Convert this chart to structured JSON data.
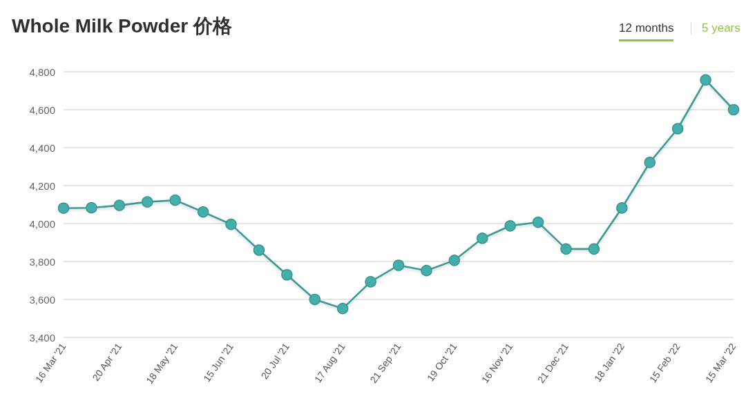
{
  "chart_data": {
    "type": "line",
    "title": "Whole Milk Powder 价格",
    "annotations": [
      "12 months",
      "5 years"
    ],
    "categories": [
      "16 Mar '21",
      null,
      "20 Apr '21",
      null,
      "18 May '21",
      null,
      "15 Jun '21",
      null,
      "20 Jul '21",
      null,
      "17 Aug '21",
      null,
      "21 Sep '21",
      null,
      "19 Oct '21",
      null,
      "16 Nov '21",
      null,
      "21 Dec '21",
      null,
      "18 Jan '22",
      null,
      "15 Feb '22",
      null,
      "15 Mar '22"
    ],
    "series": [
      {
        "color": "#44aeaa",
        "values": [
          4081,
          4083,
          4096,
          4114,
          4123,
          4061,
          3996,
          3860,
          3730,
          3600,
          3552,
          3693,
          3780,
          3752,
          3806,
          3922,
          3988,
          4007,
          3866,
          3866,
          4082,
          4322,
          4500,
          4757,
          4600
        ]
      }
    ],
    "ylim": [
      3400,
      4800
    ],
    "yticks": [
      {
        "value": 3400,
        "label": "3,400"
      },
      {
        "value": 3600,
        "label": "3,600"
      },
      {
        "value": 3800,
        "label": "3,800"
      },
      {
        "value": 4000,
        "label": "4,000"
      },
      {
        "value": 4200,
        "label": "4,200"
      },
      {
        "value": 4400,
        "label": "4,400"
      },
      {
        "value": 4600,
        "label": "4,600"
      },
      {
        "value": 4800,
        "label": "4,800"
      }
    ],
    "grid": "y",
    "marker": "circle",
    "line_style": "solid"
  }
}
